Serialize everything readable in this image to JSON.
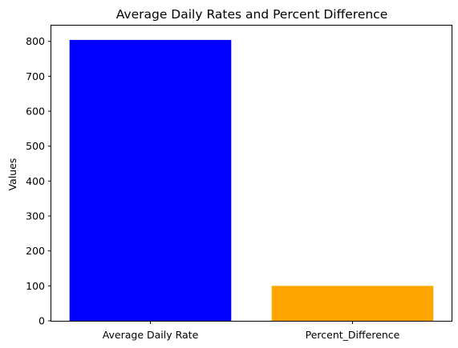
{
  "chart_data": {
    "type": "bar",
    "title": "Average Daily Rates and Percent Difference",
    "xlabel": "",
    "ylabel": "Values",
    "categories": [
      "Average Daily Rate",
      "Percent_Difference"
    ],
    "values": [
      804,
      100
    ],
    "colors": [
      "#0000ff",
      "#ffa500"
    ],
    "ylim": [
      0,
      845
    ],
    "yticks": [
      0,
      100,
      200,
      300,
      400,
      500,
      600,
      700,
      800
    ],
    "grid": false,
    "legend": "none"
  }
}
